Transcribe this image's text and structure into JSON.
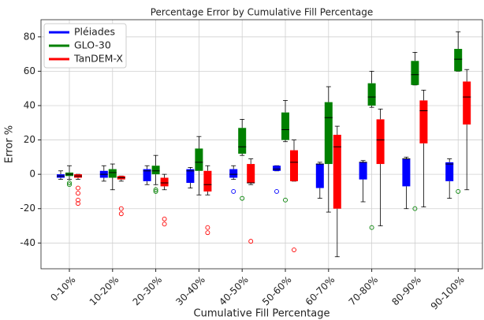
{
  "chart_data": {
    "type": "box",
    "title": "Percentage Error by Cumulative Fill Percentage",
    "x_label": "Cumulative Fill Percentage",
    "y_label": "Error %",
    "categories": [
      "0-10%",
      "10-20%",
      "20-30%",
      "30-40%",
      "40-50%",
      "50-60%",
      "60-70%",
      "70-80%",
      "80-90%",
      "90-100%"
    ],
    "ylim": [
      -55,
      90
    ],
    "yticks": [
      -40,
      -20,
      0,
      20,
      40,
      60,
      80
    ],
    "grid": true,
    "legend": "upper left",
    "series": [
      {
        "name": "Pléiades",
        "color": "#0000ff",
        "values": [
          [
            -3,
            -2,
            -1,
            0,
            2
          ],
          [
            -4,
            -2,
            0,
            2,
            5
          ],
          [
            -6,
            -4,
            2,
            3,
            5
          ],
          [
            -8,
            -5,
            2,
            3,
            4
          ],
          [
            -3,
            -2,
            0,
            3,
            5
          ],
          [
            2,
            2,
            3,
            5,
            5
          ],
          [
            -14,
            -8,
            6,
            6,
            7
          ],
          [
            -16,
            -3,
            7,
            7,
            8
          ],
          [
            -20,
            -7,
            9,
            9,
            10
          ],
          [
            -14,
            -4,
            6,
            7,
            9
          ]
        ],
        "outliers": [
          [],
          [],
          [],
          [],
          [
            -10
          ],
          [
            -10
          ],
          [],
          [],
          [],
          []
        ]
      },
      {
        "name": "GLO-30",
        "color": "#008000",
        "values": [
          [
            -3,
            -1,
            0,
            1,
            5
          ],
          [
            -9,
            -2,
            1,
            3,
            6
          ],
          [
            -6,
            0,
            2,
            5,
            11
          ],
          [
            -12,
            2,
            7,
            15,
            22
          ],
          [
            11,
            12,
            16,
            27,
            32
          ],
          [
            19,
            20,
            26,
            36,
            43
          ],
          [
            -22,
            6,
            33,
            42,
            51
          ],
          [
            39,
            40,
            45,
            53,
            60
          ],
          [
            52,
            52,
            58,
            66,
            71
          ],
          [
            60,
            60,
            67,
            73,
            83
          ]
        ],
        "outliers": [
          [
            -5,
            -6
          ],
          [],
          [
            -9,
            -10
          ],
          [],
          [
            -14
          ],
          [
            -15
          ],
          [],
          [
            -31
          ],
          [
            -20
          ],
          [
            -10
          ]
        ]
      },
      {
        "name": "TanDEM-X",
        "color": "#ff0000",
        "values": [
          [
            -3,
            -2,
            -1,
            0,
            0
          ],
          [
            -4,
            -3,
            -2,
            -1,
            -1
          ],
          [
            -9,
            -7,
            -5,
            -2,
            0
          ],
          [
            -12,
            -10,
            -6,
            2,
            5
          ],
          [
            -6,
            -5,
            -5,
            6,
            9
          ],
          [
            -4,
            -4,
            7,
            14,
            20
          ],
          [
            -48,
            -20,
            16,
            23,
            28
          ],
          [
            -30,
            6,
            20,
            32,
            38
          ],
          [
            -19,
            18,
            37,
            43,
            49
          ],
          [
            -9,
            29,
            45,
            54,
            61
          ]
        ],
        "outliers": [
          [
            -8,
            -11,
            -15,
            -17
          ],
          [
            -20,
            -23
          ],
          [
            -26,
            -29
          ],
          [
            -31,
            -34
          ],
          [
            -39
          ],
          [
            -44
          ],
          [],
          [],
          [],
          []
        ]
      }
    ]
  }
}
